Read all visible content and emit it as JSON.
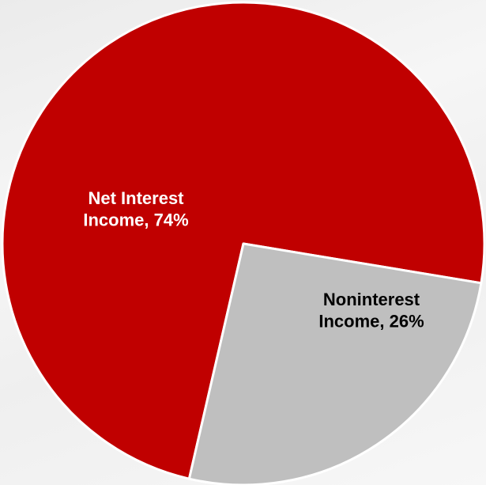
{
  "chart_data": {
    "type": "pie",
    "title": "",
    "slices": [
      {
        "label": "Net Interest Income, 74%",
        "category": "Net Interest Income",
        "value": 74,
        "color": "#c00000",
        "label_color": "#ffffff"
      },
      {
        "label": "Noninterest Income, 26%",
        "category": "Noninterest Income",
        "value": 26,
        "color": "#bfbfbf",
        "label_color": "#000000"
      }
    ],
    "start_angle_deg": 103,
    "slice_border_color": "#ffffff"
  }
}
